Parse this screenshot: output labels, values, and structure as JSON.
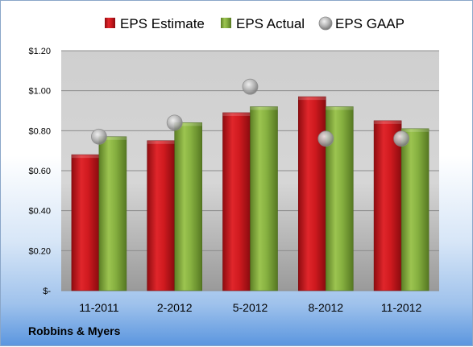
{
  "chart_data": {
    "type": "bar",
    "categories": [
      "11-2011",
      "2-2012",
      "5-2012",
      "8-2012",
      "11-2012"
    ],
    "series": [
      {
        "name": "EPS Estimate",
        "type": "bar",
        "color": "#c0161c",
        "values": [
          0.68,
          0.75,
          0.89,
          0.97,
          0.85
        ]
      },
      {
        "name": "EPS Actual",
        "type": "bar",
        "color": "#7aa33a",
        "values": [
          0.77,
          0.84,
          0.92,
          0.92,
          0.81
        ]
      },
      {
        "name": "EPS GAAP",
        "type": "marker",
        "color": "#a8a8a8",
        "values": [
          0.77,
          0.84,
          1.02,
          0.76,
          0.76
        ]
      }
    ],
    "y_ticks": [
      "$-",
      "$0.20",
      "$0.40",
      "$0.60",
      "$0.80",
      "$1.00",
      "$1.20"
    ],
    "ylim": [
      0,
      1.2
    ],
    "grid": true,
    "legend_position": "top"
  },
  "footer": {
    "label": "Robbins & Myers"
  }
}
